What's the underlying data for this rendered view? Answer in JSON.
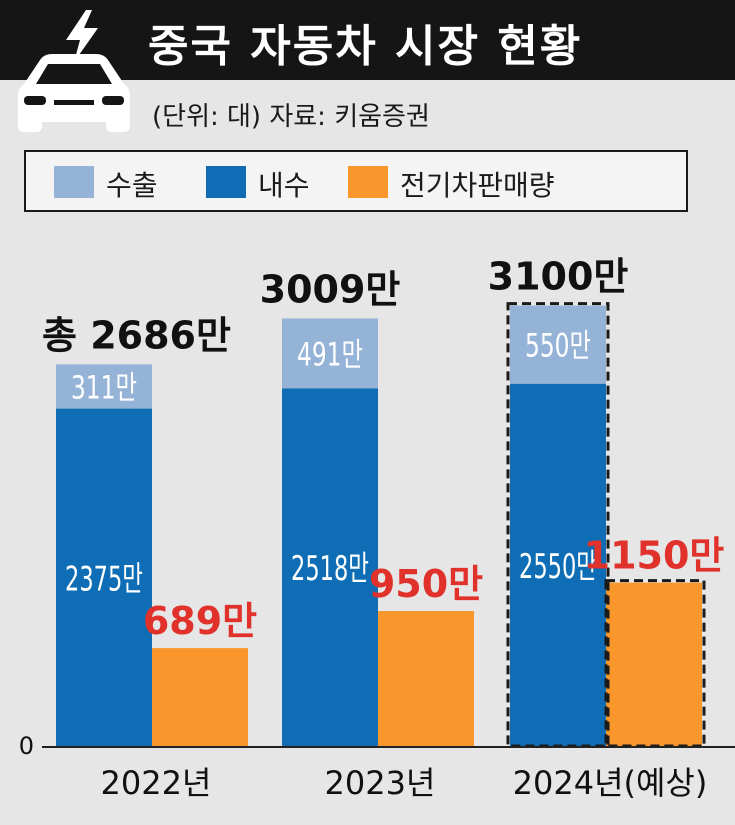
{
  "header": {
    "title": "중국 자동차 시장 현황"
  },
  "source_note": "(단위: 대)  자료: 키움증권",
  "legend": {
    "items": [
      {
        "label": "수출",
        "color": "#95b3d7"
      },
      {
        "label": "내수",
        "color": "#0e6db4"
      },
      {
        "label": "전기차판매량",
        "color": "#f9962c"
      }
    ]
  },
  "chart_data": {
    "type": "bar",
    "categories": [
      "2022년",
      "2023년",
      "2024년(예상)"
    ],
    "series": [
      {
        "name": "내수",
        "values": [
          2375,
          2518,
          2550
        ],
        "labels": [
          "2375만",
          "2518만",
          "2550만"
        ],
        "color": "#0e6db4",
        "stack": "total"
      },
      {
        "name": "수출",
        "values": [
          311,
          491,
          550
        ],
        "labels": [
          "311만",
          "491만",
          "550만"
        ],
        "color": "#95b3d7",
        "stack": "total"
      },
      {
        "name": "전기차판매량",
        "values": [
          689,
          950,
          1150
        ],
        "labels": [
          "689만",
          "950만",
          "1150만"
        ],
        "color": "#f9962c",
        "label_color": "#e0312b"
      }
    ],
    "totals": [
      2686,
      3009,
      3100
    ],
    "total_labels": [
      "총 2686만",
      "3009만",
      "3100만"
    ],
    "y_tick_labels": [
      "0"
    ],
    "ylim": [
      0,
      3280
    ],
    "forecast_category_index": 2,
    "grid": false,
    "legend_position": "top"
  }
}
